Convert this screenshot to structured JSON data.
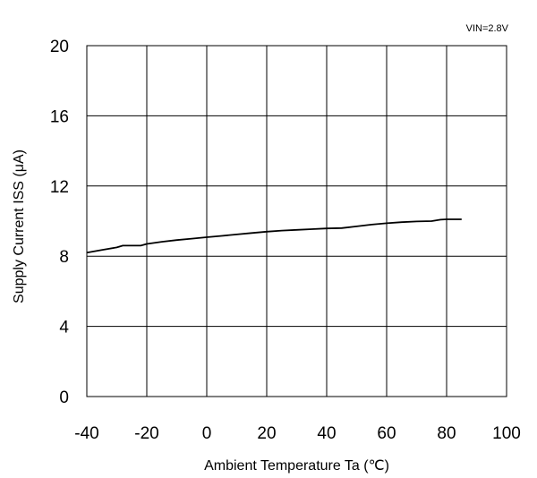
{
  "chart_data": {
    "type": "line",
    "title": "",
    "annotation": "VIN=2.8V",
    "xlabel": "Ambient Temperature Ta  (℃)",
    "ylabel": "Supply Current  ISS  (μA)",
    "xlim": [
      -40,
      100
    ],
    "ylim": [
      0,
      20
    ],
    "xticks": [
      -40,
      -20,
      0,
      20,
      40,
      60,
      80,
      100
    ],
    "yticks": [
      0,
      4,
      8,
      12,
      16,
      20
    ],
    "xtick_labels": [
      "-40",
      "-20",
      "0",
      "20",
      "40",
      "60",
      "80",
      "100"
    ],
    "ytick_labels": [
      "0",
      "4",
      "8",
      "12",
      "16",
      "20"
    ],
    "grid": true,
    "series": [
      {
        "color": "#000000",
        "x": [
          -40,
          -35,
          -30,
          -28,
          -25,
          -22,
          -20,
          -15,
          -10,
          -5,
          0,
          5,
          10,
          15,
          20,
          25,
          30,
          35,
          40,
          45,
          50,
          55,
          60,
          65,
          70,
          75,
          78,
          80,
          85
        ],
        "y": [
          8.2,
          8.35,
          8.5,
          8.6,
          8.6,
          8.6,
          8.7,
          8.82,
          8.92,
          9.0,
          9.08,
          9.16,
          9.24,
          9.32,
          9.4,
          9.46,
          9.5,
          9.54,
          9.58,
          9.6,
          9.7,
          9.8,
          9.88,
          9.94,
          9.98,
          10.0,
          10.08,
          10.1,
          10.1
        ]
      }
    ]
  }
}
